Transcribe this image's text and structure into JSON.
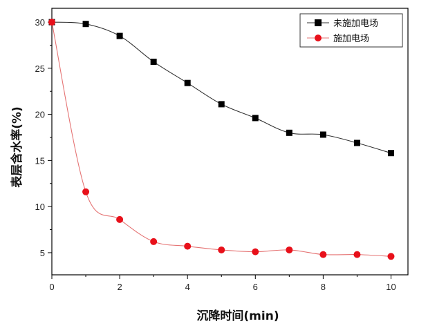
{
  "chart_data": {
    "type": "line",
    "xlabel": "沉降时间(min)",
    "ylabel": "表层含水率(%)",
    "xlim": [
      0,
      10.5
    ],
    "ylim": [
      2.6,
      31.5
    ],
    "x_ticks": [
      0,
      2,
      4,
      6,
      8,
      10
    ],
    "y_ticks": [
      5,
      10,
      15,
      20,
      25,
      30
    ],
    "grid": false,
    "legend": "top-right",
    "series": [
      {
        "name": "未施加电场",
        "marker": "square",
        "color": "#000000",
        "line_color": "#333333",
        "x": [
          0,
          1,
          2,
          3,
          4,
          5,
          6,
          7,
          8,
          9,
          10
        ],
        "values": [
          30.0,
          29.8,
          28.5,
          25.7,
          23.4,
          21.1,
          19.6,
          18.0,
          17.8,
          16.9,
          15.8
        ]
      },
      {
        "name": "施加电场",
        "marker": "circle",
        "color": "#e8101a",
        "line_color": "#e57373",
        "x": [
          0,
          1,
          2,
          3,
          4,
          5,
          6,
          7,
          8,
          9,
          10
        ],
        "values": [
          30.0,
          11.6,
          8.6,
          6.2,
          5.7,
          5.3,
          5.1,
          5.3,
          4.8,
          4.8,
          4.6
        ]
      }
    ]
  }
}
